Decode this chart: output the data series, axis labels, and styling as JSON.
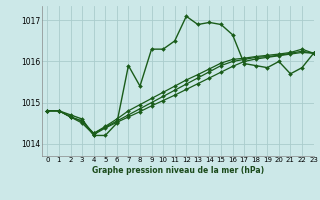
{
  "title": "Graphe pression niveau de la mer (hPa)",
  "bg_color": "#cce8e8",
  "grid_color": "#aacccc",
  "line_color": "#1a5c1a",
  "xlim": [
    -0.5,
    23
  ],
  "ylim": [
    1013.7,
    1017.35
  ],
  "yticks": [
    1014,
    1015,
    1016,
    1017
  ],
  "xticks": [
    0,
    1,
    2,
    3,
    4,
    5,
    6,
    7,
    8,
    9,
    10,
    11,
    12,
    13,
    14,
    15,
    16,
    17,
    18,
    19,
    20,
    21,
    22,
    23
  ],
  "series": [
    {
      "y": [
        1014.8,
        1014.8,
        1014.7,
        1014.6,
        1014.2,
        1014.2,
        1014.5,
        1015.9,
        1015.4,
        1016.3,
        1016.3,
        1016.5,
        1017.1,
        1016.9,
        1016.95,
        1016.9,
        1016.65,
        1015.95,
        1015.9,
        1015.85,
        1016.0,
        1015.7,
        1015.85,
        1016.2
      ],
      "marker": true,
      "lw": 1.0
    },
    {
      "y": [
        1014.8,
        1014.8,
        1014.65,
        1014.55,
        1014.25,
        1014.4,
        1014.55,
        1014.7,
        1014.85,
        1015.0,
        1015.15,
        1015.3,
        1015.45,
        1015.6,
        1015.75,
        1015.9,
        1016.0,
        1016.05,
        1016.1,
        1016.12,
        1016.15,
        1016.2,
        1016.25,
        1016.2
      ],
      "marker": true,
      "lw": 0.9
    },
    {
      "y": [
        1014.8,
        1014.8,
        1014.65,
        1014.55,
        1014.25,
        1014.42,
        1014.6,
        1014.8,
        1014.95,
        1015.1,
        1015.25,
        1015.4,
        1015.55,
        1015.68,
        1015.82,
        1015.96,
        1016.05,
        1016.08,
        1016.12,
        1016.15,
        1016.18,
        1016.22,
        1016.3,
        1016.2
      ],
      "marker": true,
      "lw": 0.9
    },
    {
      "y": [
        1014.8,
        1014.8,
        1014.65,
        1014.5,
        1014.22,
        1014.38,
        1014.52,
        1014.65,
        1014.78,
        1014.92,
        1015.05,
        1015.18,
        1015.32,
        1015.46,
        1015.6,
        1015.74,
        1015.88,
        1016.0,
        1016.06,
        1016.1,
        1016.14,
        1016.18,
        1016.22,
        1016.2
      ],
      "marker": true,
      "lw": 0.9
    }
  ]
}
